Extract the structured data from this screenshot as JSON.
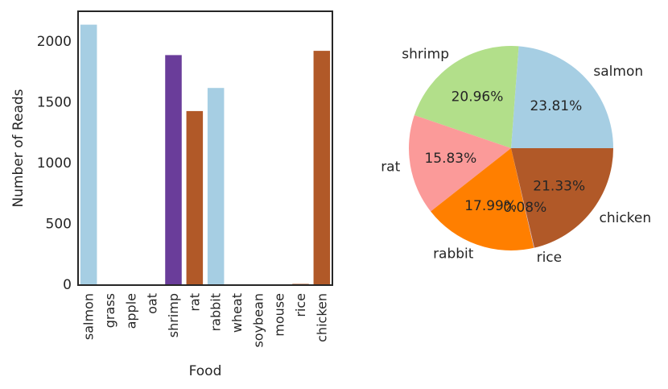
{
  "chart_data": [
    {
      "type": "bar",
      "xlabel": "Food",
      "ylabel": "Number of Reads",
      "categories": [
        "salmon",
        "grass",
        "apple",
        "oat",
        "shrimp",
        "rat",
        "rabbit",
        "wheat",
        "soybean",
        "mouse",
        "rice",
        "chicken"
      ],
      "values": [
        2140,
        0,
        0,
        0,
        1890,
        1430,
        1620,
        0,
        0,
        0,
        10,
        1925
      ],
      "colors": [
        "#a6cee3",
        "#a6cee3",
        "#a6cee3",
        "#a6cee3",
        "#6a3d9a",
        "#b15928",
        "#a6cee3",
        "#a6cee3",
        "#a6cee3",
        "#a6cee3",
        "#b15928",
        "#b15928"
      ],
      "ylim": [
        0,
        2250
      ],
      "yticks": [
        0,
        500,
        1000,
        1500,
        2000
      ],
      "grid": false
    },
    {
      "type": "pie",
      "labels": [
        "salmon",
        "shrimp",
        "rat",
        "rabbit",
        "rice",
        "chicken"
      ],
      "values": [
        23.81,
        20.96,
        15.83,
        17.99,
        0.08,
        21.33
      ],
      "pct_labels": [
        "23.81%",
        "20.96%",
        "15.83%",
        "17.99%",
        "0.08%",
        "21.33%"
      ],
      "colors": [
        "#a6cee3",
        "#b2df8a",
        "#fb9a99",
        "#ff7f00",
        "#cab2d6",
        "#b15928"
      ]
    }
  ]
}
